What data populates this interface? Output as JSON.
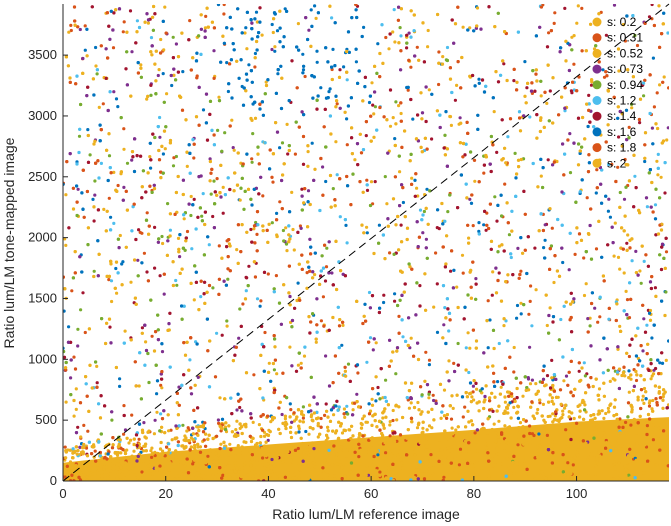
{
  "chart_data": {
    "type": "scatter",
    "title": "",
    "xlabel": "Ratio lum/LM reference image",
    "ylabel": "Ratio lum/LM tone-mapped image",
    "xlim": [
      0,
      118
    ],
    "ylim": [
      0,
      3920
    ],
    "x_ticks": [
      "0",
      "20",
      "40",
      "60",
      "80",
      "100"
    ],
    "x_tick_values": [
      0,
      20,
      40,
      60,
      80,
      100
    ],
    "y_ticks": [
      "0",
      "500",
      "1000",
      "1500",
      "2000",
      "2500",
      "3000",
      "3500"
    ],
    "y_tick_values": [
      0,
      500,
      1000,
      1500,
      2000,
      2500,
      3000,
      3500
    ],
    "grid": false,
    "legend_position": "top-right",
    "reference_line": {
      "style": "dashed",
      "color": "#000000",
      "from": [
        0,
        0
      ],
      "to": [
        118,
        3920
      ]
    },
    "series": [
      {
        "name": "s: 0.2",
        "color": "#EDB120"
      },
      {
        "name": "s: 0.31",
        "color": "#D95319"
      },
      {
        "name": "s: 0.52",
        "color": "#EDB120"
      },
      {
        "name": "s: 0.73",
        "color": "#7E2F8E"
      },
      {
        "name": "s: 0.94",
        "color": "#77AC30"
      },
      {
        "name": "s: 1.2",
        "color": "#4DBEEE"
      },
      {
        "name": "s: 1.4",
        "color": "#A2142F"
      },
      {
        "name": "s: 1.6",
        "color": "#0072BD"
      },
      {
        "name": "s: 1.8",
        "color": "#D95319"
      },
      {
        "name": "s: 2",
        "color": "#EDB120"
      }
    ],
    "approx_density": {
      "note_visible": false,
      "bottom_band_max_y_at_x": [
        [
          0,
          200
        ],
        [
          20,
          320
        ],
        [
          40,
          400
        ],
        [
          60,
          480
        ],
        [
          80,
          560
        ],
        [
          100,
          650
        ],
        [
          118,
          700
        ]
      ]
    }
  }
}
